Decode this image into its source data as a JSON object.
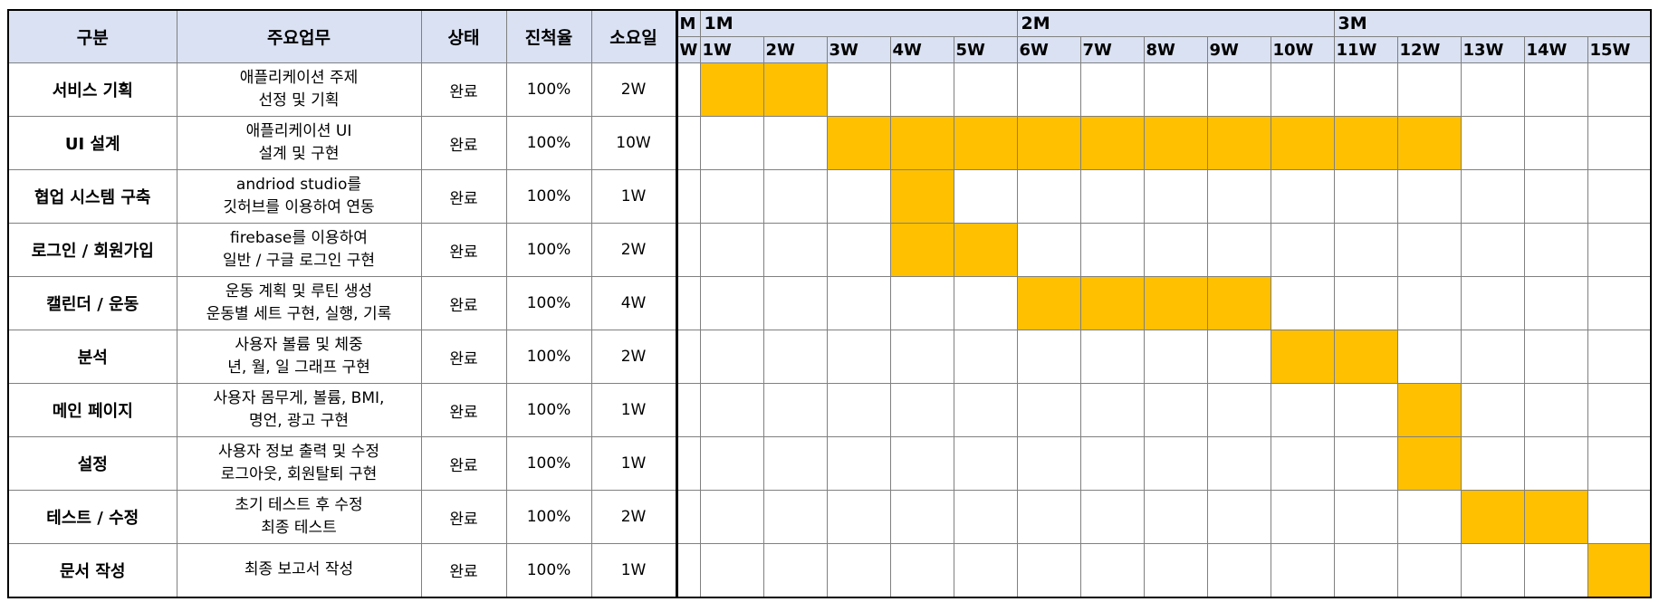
{
  "header": {
    "category": "구분",
    "task": "주요업무",
    "status": "상태",
    "progress": "진척율",
    "duration": "소요일",
    "month_marker": "M",
    "week_marker": "W",
    "months": [
      "1M",
      "2M",
      "3M"
    ],
    "weeks": [
      "1W",
      "2W",
      "3W",
      "4W",
      "5W",
      "6W",
      "7W",
      "8W",
      "9W",
      "10W",
      "11W",
      "12W",
      "13W",
      "14W",
      "15W"
    ]
  },
  "colors": {
    "filled": "#ffc000",
    "header_bg": "#d9e1f2"
  },
  "rows": [
    {
      "category": "서비스 기획",
      "task": [
        "애플리케이션 주제",
        "선정 및 기획"
      ],
      "status": "완료",
      "progress": "100%",
      "duration": "2W",
      "weeks_active": [
        1,
        2
      ]
    },
    {
      "category": "UI 설계",
      "task": [
        "애플리케이션 UI",
        "설계 및 구현"
      ],
      "status": "완료",
      "progress": "100%",
      "duration": "10W",
      "weeks_active": [
        3,
        4,
        5,
        6,
        7,
        8,
        9,
        10,
        11,
        12
      ]
    },
    {
      "category": "협업 시스템 구축",
      "task": [
        "andriod studio를",
        "깃허브를 이용하여 연동"
      ],
      "status": "완료",
      "progress": "100%",
      "duration": "1W",
      "weeks_active": [
        4
      ]
    },
    {
      "category": "로그인 / 회원가입",
      "task": [
        "firebase를 이용하여",
        "일반 / 구글 로그인 구현"
      ],
      "status": "완료",
      "progress": "100%",
      "duration": "2W",
      "weeks_active": [
        4,
        5
      ]
    },
    {
      "category": "캘린더 / 운동",
      "task": [
        "운동 계획 및 루틴 생성",
        "운동별 세트 구현, 실행, 기록"
      ],
      "status": "완료",
      "progress": "100%",
      "duration": "4W",
      "weeks_active": [
        6,
        7,
        8,
        9
      ]
    },
    {
      "category": "분석",
      "task": [
        "사용자 볼륨 및 체중",
        "년, 월, 일 그래프 구현"
      ],
      "status": "완료",
      "progress": "100%",
      "duration": "2W",
      "weeks_active": [
        10,
        11
      ]
    },
    {
      "category": "메인 페이지",
      "task": [
        "사용자 몸무게, 볼륨, BMI,",
        "명언, 광고 구현"
      ],
      "status": "완료",
      "progress": "100%",
      "duration": "1W",
      "weeks_active": [
        12
      ]
    },
    {
      "category": "설정",
      "task": [
        "사용자 정보 출력 및 수정",
        "로그아웃, 회원탈퇴 구현"
      ],
      "status": "완료",
      "progress": "100%",
      "duration": "1W",
      "weeks_active": [
        12
      ]
    },
    {
      "category": "테스트 / 수정",
      "task": [
        "초기 테스트 후 수정",
        "최종 테스트"
      ],
      "status": "완료",
      "progress": "100%",
      "duration": "2W",
      "weeks_active": [
        13,
        14
      ]
    },
    {
      "category": "문서 작성",
      "task": [
        "최종 보고서 작성"
      ],
      "status": "완료",
      "progress": "100%",
      "duration": "1W",
      "weeks_active": [
        15
      ]
    }
  ]
}
